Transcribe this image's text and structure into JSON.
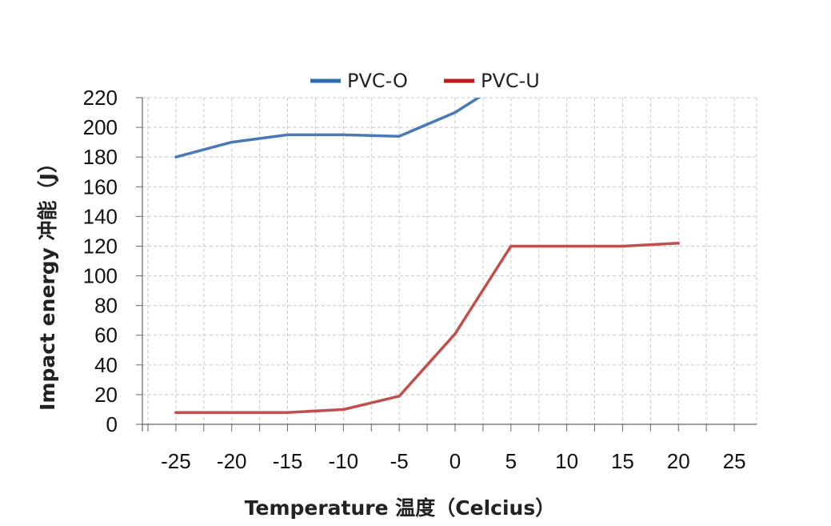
{
  "chart_data": {
    "type": "line",
    "xlabel": "Temperature 温度（Celcius）",
    "ylabel": "Impact energy 冲能（J）",
    "xlim": [
      -28,
      27
    ],
    "ylim": [
      0,
      220
    ],
    "x_ticks": [
      "-25",
      "-20",
      "-15",
      "-10",
      "-5",
      "0",
      "5",
      "10",
      "15",
      "20",
      "25"
    ],
    "y_ticks": [
      "0",
      "20",
      "40",
      "60",
      "80",
      "100",
      "120",
      "140",
      "160",
      "180",
      "200",
      "220"
    ],
    "grid": true,
    "legend_position": "top",
    "series": [
      {
        "name": "PVC-O",
        "color": "#4a7ab5",
        "legend_color": "#2f6db0",
        "points": [
          [
            -25,
            180
          ],
          [
            -20,
            190
          ],
          [
            -15,
            195
          ],
          [
            -10,
            195
          ],
          [
            -5,
            194
          ],
          [
            0,
            210
          ],
          [
            2.5,
            222
          ]
        ]
      },
      {
        "name": "PVC-U",
        "color": "#c0504d",
        "legend_color": "#b81c1c",
        "points": [
          [
            -25,
            8
          ],
          [
            -20,
            8
          ],
          [
            -15,
            8
          ],
          [
            -10,
            10
          ],
          [
            -5,
            19
          ],
          [
            0,
            61
          ],
          [
            5,
            120
          ],
          [
            10,
            120
          ],
          [
            15,
            120
          ],
          [
            20,
            122
          ]
        ]
      }
    ]
  }
}
